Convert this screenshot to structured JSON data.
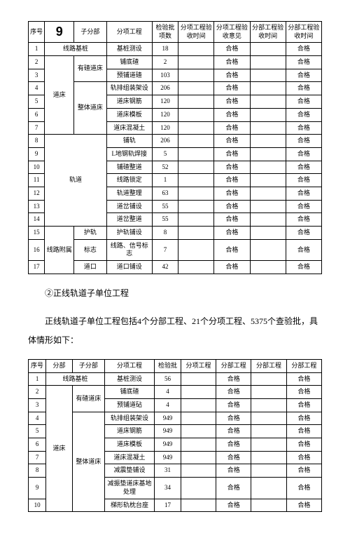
{
  "big_num": "9",
  "table1": {
    "headers": [
      "序号",
      "",
      "子分部",
      "分项工程",
      "检验批项数",
      "分项工程验收时间",
      "分项工程验收意见",
      "分部工程验收时间",
      "分部工程验收时间"
    ],
    "rows": [
      {
        "no": "1",
        "fb": "线路基桩",
        "fb_span": 1,
        "fb_cols": 2,
        "sub": "",
        "proj": "基桩测设",
        "cnt": "18",
        "c6": "",
        "c7": "合格",
        "c8": "",
        "c9": "合格"
      },
      {
        "no": "2",
        "fb": "道床",
        "fb_span": 6,
        "sub": "有碴道床",
        "sub_span": 2,
        "proj": "铺底碴",
        "cnt": "2",
        "c6": "",
        "c7": "合格",
        "c8": "",
        "c9": "合格"
      },
      {
        "no": "3",
        "proj": "预铺道碴",
        "cnt": "103",
        "c6": "",
        "c7": "合格",
        "c8": "",
        "c9": "合格"
      },
      {
        "no": "4",
        "sub": "整体道床",
        "sub_span": 4,
        "proj": "轨排组装架设",
        "cnt": "206",
        "c6": "",
        "c7": "合格",
        "c8": "",
        "c9": "合格"
      },
      {
        "no": "5",
        "proj": "道床钢筋",
        "cnt": "120",
        "c6": "",
        "c7": "合格",
        "c8": "",
        "c9": "合格"
      },
      {
        "no": "6",
        "proj": "道床模板",
        "cnt": "120",
        "c6": "",
        "c7": "合格",
        "c8": "",
        "c9": "合格"
      },
      {
        "no": "7",
        "proj": "道床混凝土",
        "cnt": "120",
        "c6": "",
        "c7": "合格",
        "c8": "",
        "c9": "合格"
      },
      {
        "no": "8",
        "fb": "轨道",
        "fb_span": 7,
        "fb_cols": 2,
        "proj": "铺轨",
        "cnt": "206",
        "c6": "",
        "c7": "合格",
        "c8": "",
        "c9": "合格"
      },
      {
        "no": "9",
        "proj": "L地钢轨焊接",
        "cnt": "5",
        "c6": "",
        "c7": "合格",
        "c8": "",
        "c9": "合格"
      },
      {
        "no": "10",
        "proj": "铺碴整道",
        "cnt": "52",
        "c6": "",
        "c7": "合格",
        "c8": "",
        "c9": "合格"
      },
      {
        "no": "11",
        "proj": "线路锁定",
        "cnt": "1",
        "c6": "",
        "c7": "合格",
        "c8": "",
        "c9": "合格"
      },
      {
        "no": "12",
        "proj": "轨道整理",
        "cnt": "63",
        "c6": "",
        "c7": "合格",
        "c8": "",
        "c9": "合格"
      },
      {
        "no": "13",
        "proj": "道岔铺设",
        "cnt": "55",
        "c6": "",
        "c7": "合格",
        "c8": "",
        "c9": "合格"
      },
      {
        "no": "14",
        "proj": "道岔整道",
        "cnt": "55",
        "c6": "",
        "c7": "合格",
        "c8": "",
        "c9": "合格"
      },
      {
        "no": "15",
        "fb": "线路附属",
        "fb_span": 3,
        "sub": "护轨",
        "sub_span": 1,
        "proj": "护轨铺设",
        "cnt": "8",
        "c6": "",
        "c7": "合格",
        "c8": "",
        "c9": "合格"
      },
      {
        "no": "16",
        "sub": "标志",
        "sub_span": 1,
        "proj": "线路、信号标志",
        "cnt": "7",
        "c6": "",
        "c7": "合格",
        "c8": "",
        "c9": "合格"
      },
      {
        "no": "17",
        "sub": "道口",
        "sub_span": 1,
        "proj": "道口铺设",
        "cnt": "42",
        "c6": "",
        "c7": "合格",
        "c8": "",
        "c9": "合格"
      }
    ]
  },
  "paragraph_title": "②正线轨道子单位工程",
  "paragraph_body": "正线轨道子单位工程包括4个分部工程、21个分项工程、5375个查验批，具体情形如下：",
  "table2": {
    "headers": [
      "序号",
      "分部",
      "子分部",
      "分项工程",
      "检验批",
      "分项工程",
      "分部工程",
      "分部工程",
      "分部工程"
    ],
    "rows": [
      {
        "no": "1",
        "fb": "线路基桩",
        "fb_span": 1,
        "fb_cols": 2,
        "proj": "基桩测设",
        "cnt": "56",
        "c6": "",
        "c7": "合格",
        "c8": "",
        "c9": "合格"
      },
      {
        "no": "2",
        "fb": "道床",
        "fb_span": 9,
        "sub": "有碴道床",
        "sub_span": 2,
        "proj": "铺底碴",
        "cnt": "4",
        "c6": "",
        "c7": "合格",
        "c8": "",
        "c9": "合格"
      },
      {
        "no": "3",
        "proj": "预铺道砧",
        "cnt": "4",
        "c6": "",
        "c7": "合格",
        "c8": "",
        "c9": "合格"
      },
      {
        "no": "4",
        "sub": "整体道床",
        "sub_span": 7,
        "proj": "轨排组装架设",
        "cnt": "949",
        "c6": "",
        "c7": "合格",
        "c8": "",
        "c9": "合格"
      },
      {
        "no": "5",
        "proj": "道床钢筋",
        "cnt": "949",
        "c6": "",
        "c7": "合格",
        "c8": "",
        "c9": "合格"
      },
      {
        "no": "6",
        "proj": "道床模板",
        "cnt": "949",
        "c6": "",
        "c7": "合格",
        "c8": "",
        "c9": "合格"
      },
      {
        "no": "7",
        "proj": "道床混凝土",
        "cnt": "949",
        "c6": "",
        "c7": "合格",
        "c8": "",
        "c9": "合格"
      },
      {
        "no": "8",
        "proj": "减震垫铺设",
        "cnt": "31",
        "c6": "",
        "c7": "合格",
        "c8": "",
        "c9": "合格"
      },
      {
        "no": "9",
        "proj": "减振垫道床基地处理",
        "cnt": "34",
        "c6": "",
        "c7": "合格",
        "c8": "",
        "c9": "合格"
      },
      {
        "no": "10",
        "proj": "梯形轨枕台座",
        "cnt": "17",
        "c6": "",
        "c7": "合格",
        "c8": "",
        "c9": "合格"
      }
    ]
  }
}
